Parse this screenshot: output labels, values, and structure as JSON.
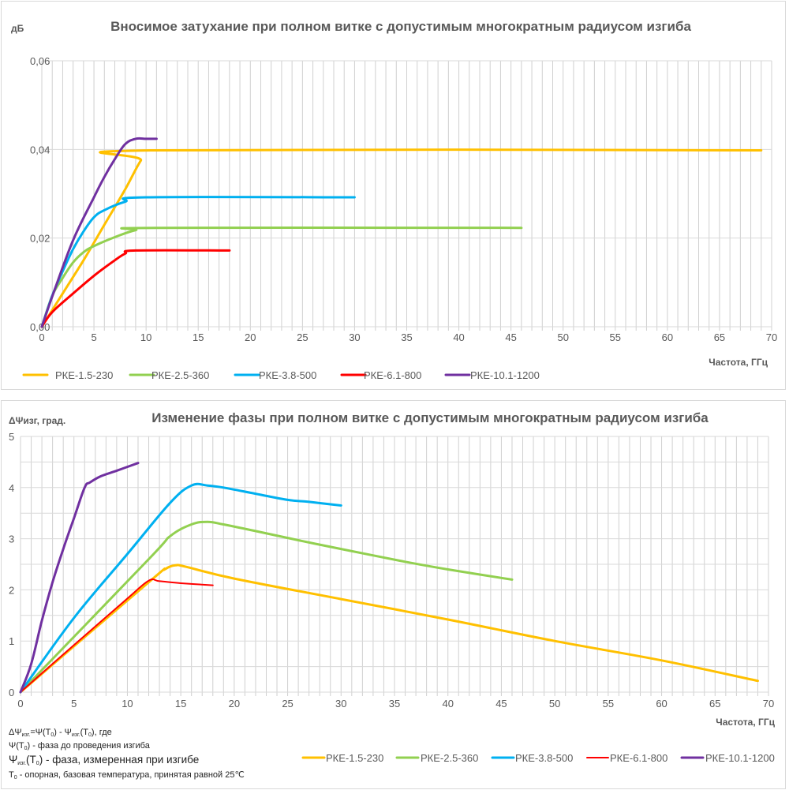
{
  "colors": {
    "РКЕ-1.5-230": "#FFC000",
    "РКЕ-2.5-360": "#92D050",
    "РКЕ-3.8-500": "#00B0F0",
    "РКЕ-6.1-800": "#FF0000",
    "РКЕ-10.1-1200": "#7030A0"
  },
  "notes": {
    "line1_prefix": "ΔΨ",
    "line1_sub1": "изг.",
    "line1_mid": "=Ψ(T",
    "line1_sub2": "0",
    "line1_mid2": ") - Ψ",
    "line1_sub3": "изг.",
    "line1_mid3": "(T",
    "line1_sub4": "0",
    "line1_end": "), где",
    "line2_a": "Ψ(T",
    "line2_sub": "0",
    "line2_b": ") - фаза до проведения  изгиба",
    "line3_a": "Ψ",
    "line3_sub1": "изг.",
    "line3_b": "(T",
    "line3_sub2": "0",
    "line3_c": ") - фаза,  измеренная при изгибе",
    "line4_a": "T",
    "line4_sub": "0",
    "line4_b": " - опорная, базовая температура, принятая равной 25℃"
  },
  "chart_data": [
    {
      "type": "line",
      "title": "Вносимое затухание при полном витке с допустимым многократным радиусом изгиба",
      "ylabel": "дБ",
      "xlabel": "Частота, ГГц",
      "xlim": [
        0,
        70
      ],
      "ylim": [
        0,
        0.06
      ],
      "x_ticks": [
        "0",
        "5",
        "10",
        "15",
        "20",
        "25",
        "30",
        "35",
        "40",
        "45",
        "50",
        "55",
        "60",
        "65",
        "70"
      ],
      "y_ticks": [
        "0,00",
        "0,02",
        "0,04",
        "0,06"
      ],
      "y_tick_values": [
        0,
        0.02,
        0.04,
        0.06
      ],
      "grid": "vertical every 1 GHz, horizontal every 0.02",
      "legend_position": "bottom",
      "series": [
        {
          "name": "РКЕ-1.5-230",
          "x": [
            0,
            2,
            4,
            6,
            8,
            9.5,
            10.5,
            69
          ],
          "y": [
            0,
            0.0075,
            0.015,
            0.023,
            0.031,
            0.0375,
            0.0398,
            0.0398
          ]
        },
        {
          "name": "РКЕ-2.5-360",
          "x": [
            0,
            1,
            2,
            3,
            4,
            5,
            7,
            9,
            11,
            46
          ],
          "y": [
            0,
            0.007,
            0.011,
            0.0145,
            0.0168,
            0.0182,
            0.0202,
            0.0218,
            0.0223,
            0.0223
          ]
        },
        {
          "name": "РКЕ-3.8-500",
          "x": [
            0,
            1,
            2,
            3,
            4,
            5,
            6,
            8,
            10,
            30
          ],
          "y": [
            0,
            0.007,
            0.0125,
            0.0175,
            0.0215,
            0.0247,
            0.0263,
            0.0282,
            0.0292,
            0.0292
          ]
        },
        {
          "name": "РКЕ-6.1-800",
          "x": [
            0,
            1,
            3,
            5,
            7,
            8,
            9,
            18
          ],
          "y": [
            0,
            0.0033,
            0.0075,
            0.0115,
            0.015,
            0.0165,
            0.0172,
            0.0172
          ]
        },
        {
          "name": "РКЕ-10.1-1200",
          "x": [
            0,
            1,
            3,
            5,
            6,
            7,
            8,
            9,
            10,
            11
          ],
          "y": [
            0,
            0.0068,
            0.0195,
            0.0292,
            0.0338,
            0.0378,
            0.0412,
            0.0424,
            0.0424,
            0.0424
          ]
        }
      ]
    },
    {
      "type": "line",
      "title": "Изменение фазы при полном витке с допустимым многократным радиусом изгиба",
      "ylabel": "ΔΨизг, град.",
      "xlabel": "Частота, ГГц",
      "xlim": [
        0,
        70
      ],
      "ylim": [
        0,
        5
      ],
      "x_ticks": [
        "0",
        "5",
        "10",
        "15",
        "20",
        "25",
        "30",
        "35",
        "40",
        "45",
        "50",
        "55",
        "60",
        "65",
        "70"
      ],
      "y_ticks": [
        "0",
        "1",
        "2",
        "3",
        "4",
        "5"
      ],
      "y_tick_values": [
        0,
        1,
        2,
        3,
        4,
        5
      ],
      "grid": "vertical every 1 GHz, horizontal every 0.5",
      "legend_position": "bottom-right",
      "series": [
        {
          "name": "РКЕ-1.5-230",
          "x": [
            0,
            12,
            13.5,
            14.5,
            15.5,
            20,
            30,
            40,
            50,
            60,
            69
          ],
          "y": [
            0,
            2.15,
            2.4,
            2.48,
            2.45,
            2.22,
            1.82,
            1.42,
            1.0,
            0.62,
            0.22
          ]
        },
        {
          "name": "РКЕ-2.5-360",
          "x": [
            0,
            12,
            14,
            16,
            17.5,
            19,
            22,
            26,
            30,
            36,
            40,
            46
          ],
          "y": [
            0,
            2.6,
            3.05,
            3.28,
            3.33,
            3.28,
            3.15,
            2.97,
            2.8,
            2.55,
            2.4,
            2.2
          ]
        },
        {
          "name": "РКЕ-3.8-500",
          "x": [
            0,
            5,
            10,
            14,
            16,
            17.5,
            19,
            22,
            25,
            27,
            30
          ],
          "y": [
            0,
            1.45,
            2.7,
            3.7,
            4.04,
            4.04,
            4.0,
            3.88,
            3.76,
            3.72,
            3.65
          ]
        },
        {
          "name": "РКЕ-6.1-800",
          "x": [
            0,
            5,
            10,
            12,
            13,
            15,
            18
          ],
          "y": [
            0,
            0.92,
            1.83,
            2.18,
            2.17,
            2.13,
            2.09
          ]
        },
        {
          "name": "РКЕ-10.1-1200",
          "x": [
            0,
            1,
            2,
            3,
            4,
            5,
            6,
            6.5,
            7.5,
            9,
            11
          ],
          "y": [
            0,
            0.55,
            1.4,
            2.15,
            2.8,
            3.4,
            4.0,
            4.1,
            4.22,
            4.33,
            4.48
          ]
        }
      ]
    }
  ]
}
